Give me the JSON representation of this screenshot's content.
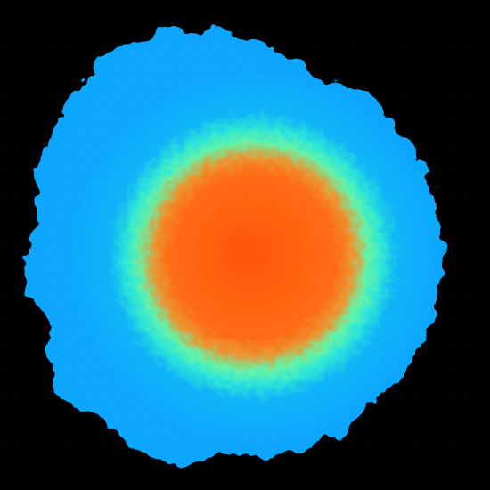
{
  "image": {
    "background_color": "#000000",
    "colormap": [
      {
        "level": 0.0,
        "color": "#0aa6ff"
      },
      {
        "level": 0.3,
        "color": "#10b6f6"
      },
      {
        "level": 0.45,
        "color": "#2ee6d6"
      },
      {
        "level": 0.55,
        "color": "#66f2a6"
      },
      {
        "level": 0.7,
        "color": "#ff6a16"
      },
      {
        "level": 1.0,
        "color": "#ff4f0a"
      }
    ]
  }
}
